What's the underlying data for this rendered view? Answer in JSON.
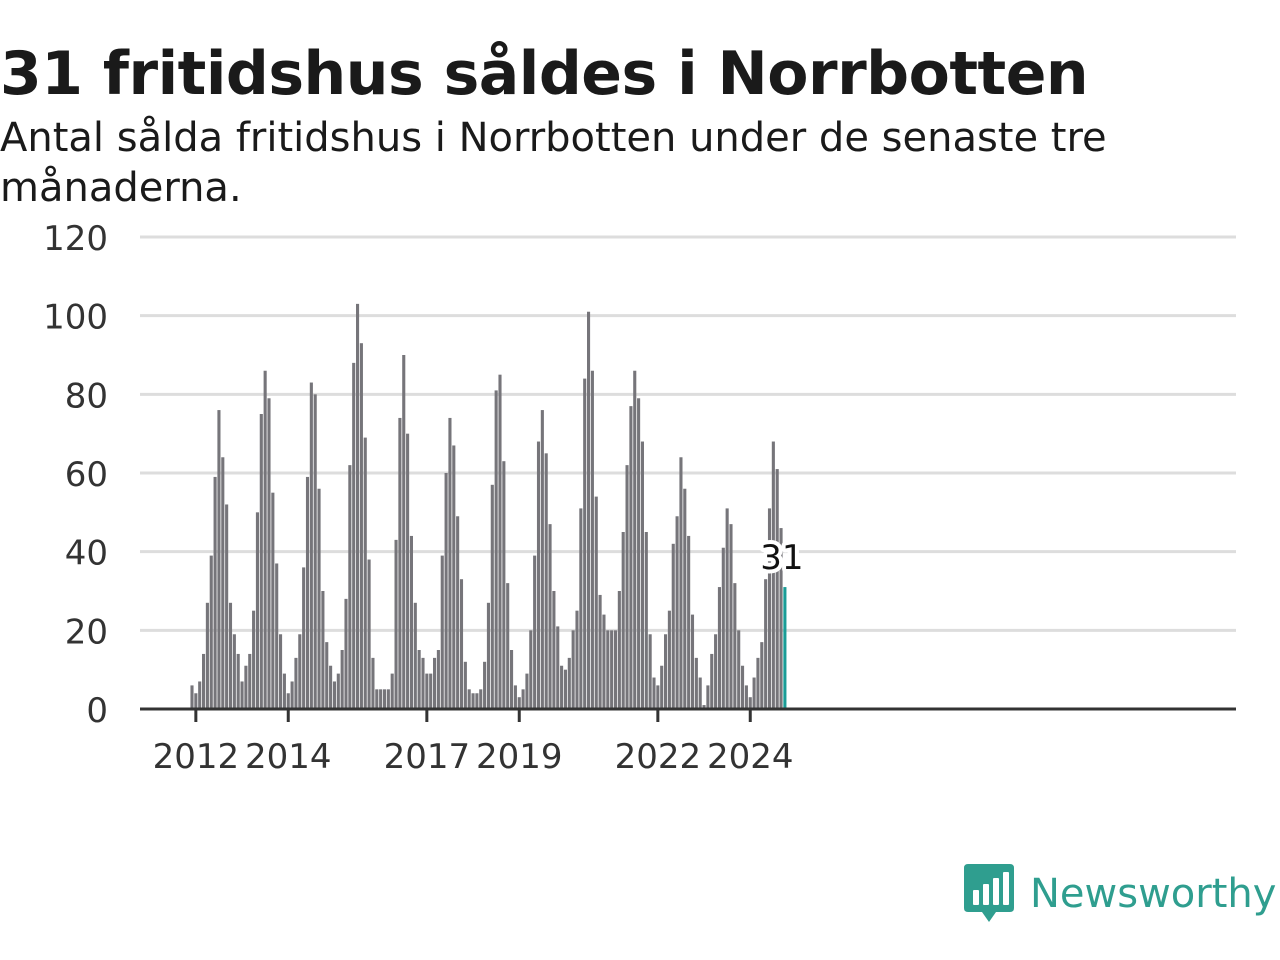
{
  "title": "31 fritidshus såldes i Norrbotten",
  "subtitle": "Antal sålda fritidshus i Norrbotten under de senaste tre månaderna.",
  "brand": {
    "name": "Newsworthy",
    "color": "#2f9e8f",
    "icon": "bar-chart-speech-bubble-icon"
  },
  "colors": {
    "bar": "#76757a",
    "highlight": "#1a9c96",
    "grid": "#dddddd",
    "axis": "#333333"
  },
  "chart_data": {
    "type": "bar",
    "title": "31 fritidshus såldes i Norrbotten",
    "subtitle": "Antal sålda fritidshus i Norrbotten under de senaste tre månaderna.",
    "xlabel": "",
    "ylabel": "",
    "ylim": [
      0,
      120
    ],
    "y_ticks": [
      0,
      20,
      40,
      60,
      80,
      100,
      120
    ],
    "x_ticks": [
      "2012",
      "2014",
      "2017",
      "2019",
      "2022",
      "2024"
    ],
    "grid": true,
    "first_month": "2011-12",
    "last_month": "2024-12",
    "values": [
      6,
      4,
      7,
      14,
      27,
      39,
      59,
      76,
      64,
      52,
      27,
      19,
      14,
      7,
      11,
      14,
      25,
      50,
      75,
      86,
      79,
      55,
      37,
      19,
      9,
      4,
      7,
      13,
      19,
      36,
      59,
      83,
      80,
      56,
      30,
      17,
      11,
      7,
      9,
      15,
      28,
      62,
      88,
      103,
      93,
      69,
      38,
      13,
      5,
      5,
      5,
      5,
      9,
      43,
      74,
      90,
      70,
      44,
      27,
      15,
      13,
      9,
      9,
      13,
      15,
      39,
      60,
      74,
      67,
      49,
      33,
      12,
      5,
      4,
      4,
      5,
      12,
      27,
      57,
      81,
      85,
      63,
      32,
      15,
      6,
      3,
      5,
      9,
      20,
      39,
      68,
      76,
      65,
      47,
      30,
      21,
      11,
      10,
      13,
      20,
      25,
      51,
      84,
      101,
      86,
      54,
      29,
      24,
      20,
      20,
      20,
      30,
      45,
      62,
      77,
      86,
      79,
      68,
      45,
      19,
      8,
      6,
      11,
      19,
      25,
      42,
      49,
      64,
      56,
      44,
      24,
      13,
      8,
      1,
      6,
      14,
      19,
      31,
      41,
      51,
      47,
      32,
      20,
      11,
      6,
      3,
      8,
      13,
      17,
      33,
      51,
      68,
      61,
      46,
      31
    ],
    "last_value_label": "31"
  }
}
